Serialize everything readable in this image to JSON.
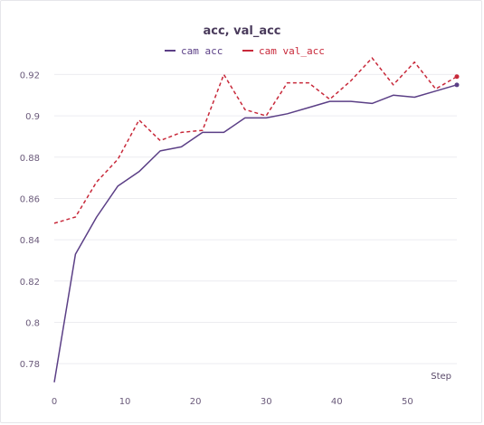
{
  "chart_data": {
    "type": "line",
    "title": "acc, val_acc",
    "xlabel": "Step",
    "ylabel": "",
    "xlim": [
      0,
      57
    ],
    "ylim": [
      0.77,
      0.925
    ],
    "xticks": [
      0,
      10,
      20,
      30,
      40,
      50
    ],
    "yticks": [
      0.78,
      0.8,
      0.82,
      0.84,
      0.86,
      0.88,
      0.9,
      0.92
    ],
    "ytick_labels": [
      "0.78",
      "0.8",
      "0.82",
      "0.84",
      "0.86",
      "0.88",
      "0.9",
      "0.92"
    ],
    "grid": true,
    "legend_position": "top-center",
    "series": [
      {
        "name": "cam acc",
        "color": "#5b3f86",
        "dash": "solid",
        "x": [
          0,
          3,
          6,
          9,
          12,
          15,
          18,
          21,
          24,
          27,
          30,
          33,
          36,
          39,
          42,
          45,
          48,
          51,
          54,
          57
        ],
        "y": [
          0.771,
          0.833,
          0.851,
          0.866,
          0.873,
          0.883,
          0.885,
          0.892,
          0.892,
          0.899,
          0.899,
          0.901,
          0.904,
          0.907,
          0.907,
          0.906,
          0.91,
          0.909,
          0.912,
          0.915
        ]
      },
      {
        "name": "cam val_acc",
        "color": "#c8293a",
        "dash": "dashed",
        "x": [
          0,
          3,
          6,
          9,
          12,
          15,
          18,
          21,
          24,
          27,
          30,
          33,
          36,
          39,
          42,
          45,
          48,
          51,
          54,
          57
        ],
        "y": [
          0.848,
          0.851,
          0.868,
          0.879,
          0.898,
          0.888,
          0.892,
          0.893,
          0.92,
          0.903,
          0.9,
          0.916,
          0.916,
          0.908,
          0.917,
          0.928,
          0.915,
          0.926,
          0.913,
          0.919
        ]
      }
    ]
  }
}
